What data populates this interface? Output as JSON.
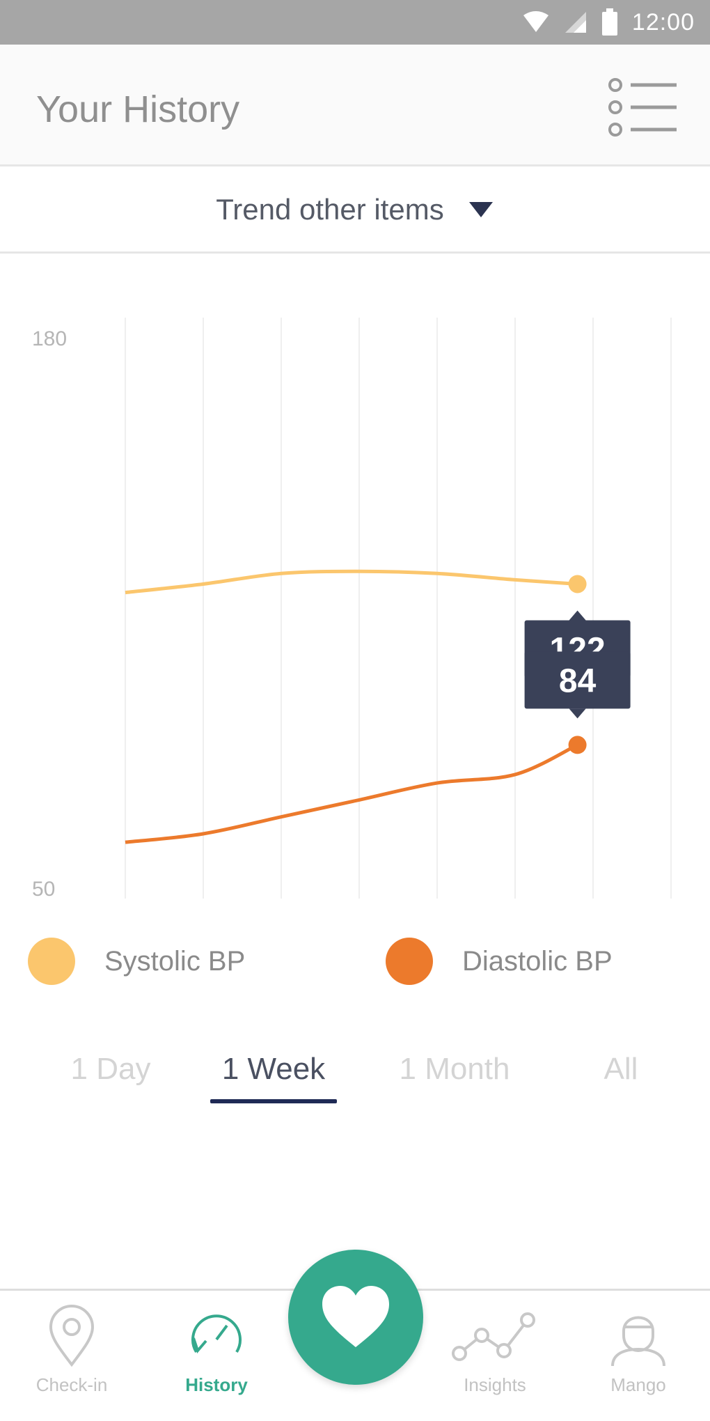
{
  "status_bar": {
    "time": "12:00",
    "icons": [
      "wifi-icon",
      "signal-icon",
      "battery-icon"
    ]
  },
  "header": {
    "title": "Your History",
    "menu_icon": "list-menu-icon"
  },
  "trend_selector": {
    "label": "Trend other items",
    "icon": "dropdown-triangle-icon"
  },
  "chart_data": {
    "type": "line",
    "y_ticks": [
      "180",
      "50"
    ],
    "ylim": [
      50,
      180
    ],
    "x_index": [
      0,
      1,
      2,
      3,
      4,
      5,
      6
    ],
    "grid": "vertical",
    "series": [
      {
        "name": "Systolic BP",
        "color": "#fbc66d",
        "x": [
          0,
          1,
          2,
          3,
          4,
          5,
          5.8
        ],
        "values": [
          120,
          122,
          124.5,
          125,
          124.5,
          123,
          122
        ]
      },
      {
        "name": "Diastolic BP",
        "color": "#ec7a2c",
        "x": [
          0,
          1,
          2,
          3,
          4,
          5,
          5.8
        ],
        "values": [
          61,
          63,
          67,
          71,
          75,
          77,
          84
        ]
      }
    ],
    "tooltips": [
      {
        "series": "Systolic BP",
        "label": "122"
      },
      {
        "series": "Diastolic BP",
        "label": "84"
      }
    ],
    "legend_placement": "bottom"
  },
  "legend": [
    {
      "label": "Systolic BP",
      "color": "#fbc66d"
    },
    {
      "label": "Diastolic BP",
      "color": "#ec7a2c"
    }
  ],
  "range_tabs": [
    {
      "label": "1 Day",
      "active": false
    },
    {
      "label": "1 Week",
      "active": true
    },
    {
      "label": "1 Month",
      "active": false
    },
    {
      "label": "All",
      "active": false
    }
  ],
  "bottom_nav": {
    "items": [
      {
        "label": "Check-in",
        "icon": "location-pin-icon",
        "active": false
      },
      {
        "label": "History",
        "icon": "history-gauge-icon",
        "active": true
      },
      {
        "label": "Insights",
        "icon": "insights-graph-icon",
        "active": false
      },
      {
        "label": "Mango",
        "icon": "user-avatar-icon",
        "active": false
      }
    ],
    "fab_icon": "heart-icon",
    "accent": "#35a98d"
  }
}
